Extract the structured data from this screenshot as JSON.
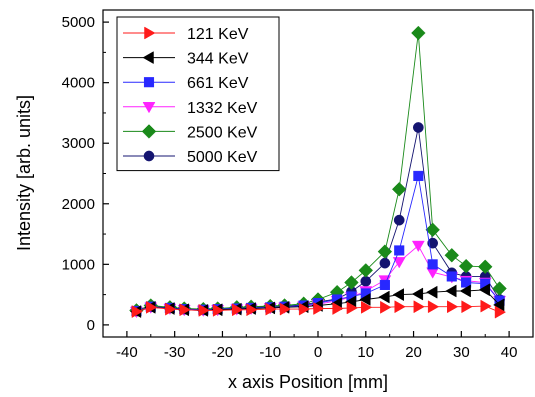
{
  "chart_data": {
    "type": "scatter",
    "xlabel": "x axis Position [mm]",
    "ylabel": "Intensity [arb. units]",
    "xlim": [
      -45,
      45
    ],
    "ylim": [
      -200,
      5200
    ],
    "xticks": [
      -40,
      -30,
      -20,
      -10,
      0,
      10,
      20,
      30,
      40
    ],
    "yticks": [
      0,
      1000,
      2000,
      3000,
      4000,
      5000
    ],
    "legend_position": "top-left",
    "grid": false,
    "x": [
      -38,
      -35,
      -31,
      -28,
      -24,
      -21,
      -17,
      -14,
      -10,
      -7,
      -3,
      0,
      4,
      7,
      10,
      14,
      17,
      21,
      24,
      28,
      31,
      35,
      38
    ],
    "series": [
      {
        "name": "5000 KeV",
        "marker": "circle",
        "color": "#141470",
        "values": [
          230,
          320,
          280,
          260,
          250,
          265,
          280,
          290,
          300,
          310,
          330,
          380,
          430,
          550,
          720,
          1020,
          1730,
          3260,
          1350,
          860,
          800,
          800,
          420
        ]
      },
      {
        "name": "2500 KeV",
        "marker": "diamond",
        "color": "#1a8a1a",
        "values": [
          240,
          320,
          290,
          270,
          260,
          270,
          290,
          300,
          310,
          320,
          350,
          420,
          540,
          700,
          900,
          1210,
          2240,
          4820,
          1570,
          1150,
          970,
          960,
          600
        ]
      },
      {
        "name": "1332 KeV",
        "marker": "triangle-down",
        "color": "#ff22ff",
        "values": [
          220,
          290,
          270,
          250,
          240,
          250,
          260,
          270,
          280,
          290,
          310,
          340,
          400,
          460,
          560,
          740,
          1040,
          1310,
          870,
          790,
          730,
          700,
          400
        ]
      },
      {
        "name": "661 KeV",
        "marker": "square",
        "color": "#2828ff",
        "values": [
          230,
          300,
          280,
          260,
          250,
          260,
          270,
          280,
          290,
          300,
          320,
          360,
          420,
          470,
          520,
          660,
          1230,
          2460,
          1000,
          800,
          700,
          680,
          400
        ]
      },
      {
        "name": "344 KeV",
        "marker": "triangle-left",
        "color": "#000000",
        "values": [
          220,
          290,
          270,
          250,
          240,
          250,
          260,
          270,
          280,
          290,
          300,
          320,
          350,
          380,
          420,
          460,
          500,
          510,
          540,
          560,
          560,
          580,
          330
        ]
      },
      {
        "name": "121 KeV",
        "marker": "triangle-right",
        "color": "#ff1a1a",
        "values": [
          220,
          290,
          260,
          250,
          240,
          240,
          250,
          250,
          260,
          260,
          260,
          270,
          270,
          280,
          290,
          290,
          300,
          300,
          300,
          300,
          300,
          310,
          210
        ]
      }
    ],
    "legend_order": [
      "121 KeV",
      "344 KeV",
      "661 KeV",
      "1332 KeV",
      "2500 KeV",
      "5000 KeV"
    ]
  }
}
